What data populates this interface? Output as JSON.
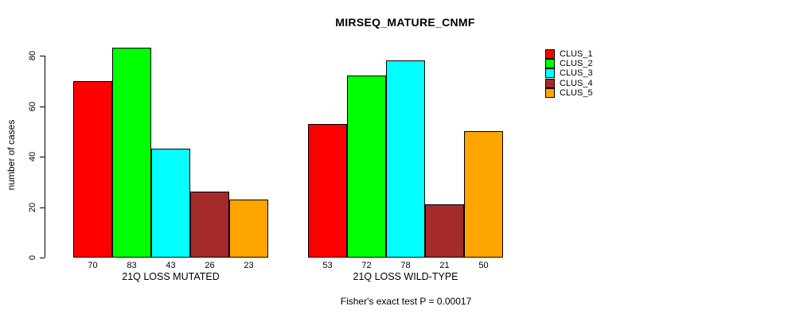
{
  "chart_data": {
    "type": "bar",
    "title": "MIRSEQ_MATURE_CNMF",
    "ylabel": "number of cases",
    "xlabel": "",
    "ylim": [
      0,
      80
    ],
    "yticks": [
      0,
      20,
      40,
      60,
      80
    ],
    "grid": false,
    "legend_position": "right-outside-top",
    "bar_value_labels": true,
    "categories": [
      "21Q LOSS MUTATED",
      "21Q LOSS WILD-TYPE"
    ],
    "series": [
      {
        "name": "CLUS_1",
        "color": "#ff0000",
        "values": [
          70,
          53
        ]
      },
      {
        "name": "CLUS_2",
        "color": "#00ff00",
        "values": [
          83,
          72
        ]
      },
      {
        "name": "CLUS_3",
        "color": "#00ffff",
        "values": [
          43,
          78
        ]
      },
      {
        "name": "CLUS_4",
        "color": "#a52a2a",
        "values": [
          26,
          21
        ]
      },
      {
        "name": "CLUS_5",
        "color": "#ffa500",
        "values": [
          23,
          50
        ]
      }
    ],
    "annotation": "Fisher's exact test P = 0.00017"
  }
}
